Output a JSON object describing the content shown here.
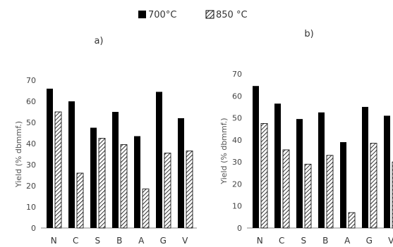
{
  "legend": [
    {
      "label": "700°C",
      "pattern": "solid"
    },
    {
      "label": "850 °C",
      "pattern": "hatched"
    }
  ],
  "colors": {
    "solid": "#000000",
    "hatch": "#000000",
    "axis": "#888888",
    "text": "#333333"
  },
  "chart_data": [
    {
      "type": "bar",
      "panel_label": "a)",
      "ylabel": "Yield (% dbmmf.)",
      "ylim": [
        0,
        70
      ],
      "yticks": [
        0,
        10,
        20,
        30,
        40,
        50,
        60,
        70
      ],
      "categories": [
        "N",
        "C",
        "S",
        "B",
        "A",
        "G",
        "V"
      ],
      "series": [
        {
          "name": "700°C",
          "values": [
            66,
            60,
            47.5,
            55,
            43.5,
            64.5,
            52
          ]
        },
        {
          "name": "850 °C",
          "values": [
            55,
            26,
            42.5,
            39.5,
            18.5,
            35.5,
            36.5
          ]
        }
      ],
      "grid": false
    },
    {
      "type": "bar",
      "panel_label": "b)",
      "ylabel": "Yield (% dbmmf.)",
      "ylim": [
        0,
        70
      ],
      "yticks": [
        0,
        10,
        20,
        30,
        40,
        50,
        60,
        70
      ],
      "categories": [
        "N",
        "C",
        "S",
        "B",
        "A",
        "G",
        "V"
      ],
      "series": [
        {
          "name": "700°C",
          "values": [
            64.5,
            56.5,
            49.5,
            52.5,
            39,
            55,
            51
          ]
        },
        {
          "name": "850 °C",
          "values": [
            47.5,
            35.5,
            29,
            33,
            7,
            38.5,
            30
          ]
        }
      ],
      "grid": false
    }
  ]
}
